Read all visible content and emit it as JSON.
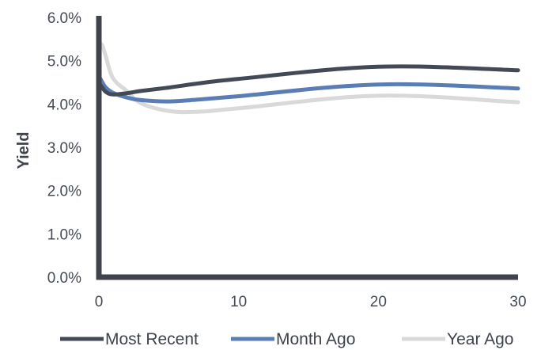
{
  "chart_data": {
    "type": "line",
    "title": "",
    "xlabel": "",
    "ylabel": "Yield",
    "xlim": [
      0,
      30
    ],
    "ylim": [
      0,
      6
    ],
    "x_ticks": [
      0,
      10,
      20,
      30
    ],
    "x_tick_labels": [
      "0",
      "10",
      "20",
      "30"
    ],
    "y_ticks": [
      0,
      1,
      2,
      3,
      4,
      5,
      6
    ],
    "y_tick_labels": [
      "0.0%",
      "1.0%",
      "2.0%",
      "3.0%",
      "4.0%",
      "5.0%",
      "6.0%"
    ],
    "grid": false,
    "legend_position": "bottom",
    "series": [
      {
        "name": "Most Recent",
        "color": "#434a56",
        "x": [
          0.08,
          0.25,
          0.5,
          1,
          2,
          3,
          5,
          7,
          10,
          20,
          30
        ],
        "y": [
          4.45,
          4.38,
          4.28,
          4.22,
          4.25,
          4.3,
          4.38,
          4.47,
          4.58,
          4.86,
          4.78
        ]
      },
      {
        "name": "Month Ago",
        "color": "#5b7db5",
        "x": [
          0.08,
          0.25,
          0.5,
          1,
          2,
          3,
          5,
          7,
          10,
          20,
          30
        ],
        "y": [
          4.6,
          4.5,
          4.38,
          4.26,
          4.15,
          4.09,
          4.06,
          4.1,
          4.18,
          4.45,
          4.36
        ]
      },
      {
        "name": "Year Ago",
        "color": "#d9d9d9",
        "x": [
          0.08,
          0.25,
          0.5,
          1,
          2,
          3,
          5,
          7,
          10,
          20,
          30
        ],
        "y": [
          5.4,
          5.35,
          5.1,
          4.6,
          4.3,
          4.02,
          3.84,
          3.82,
          3.9,
          4.19,
          4.04
        ]
      }
    ]
  }
}
